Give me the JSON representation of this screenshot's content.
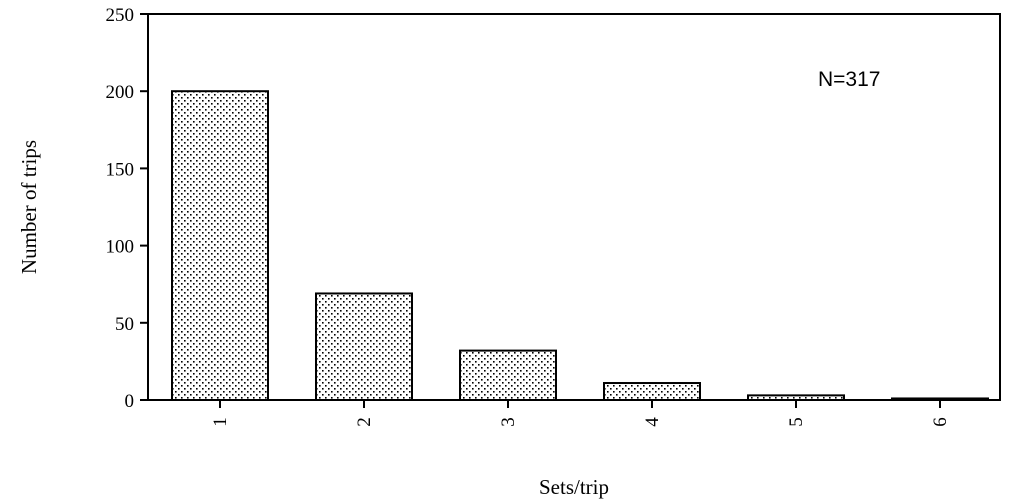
{
  "chart_data": {
    "type": "bar",
    "title": "",
    "xlabel": "Sets/trip",
    "ylabel": "Number of trips",
    "categories": [
      "1",
      "2",
      "3",
      "4",
      "5",
      "6"
    ],
    "values": [
      200,
      69,
      32,
      11,
      3,
      1
    ],
    "ylim": [
      0,
      250
    ],
    "yticks": [
      0,
      50,
      100,
      150,
      200,
      250
    ],
    "annotation": "N=317",
    "grid": false,
    "legend": "none",
    "bar_fill": "dotted stipple",
    "colors": {
      "bar_outline": "#000000",
      "bar_dots": "#000000",
      "background": "#ffffff"
    }
  }
}
